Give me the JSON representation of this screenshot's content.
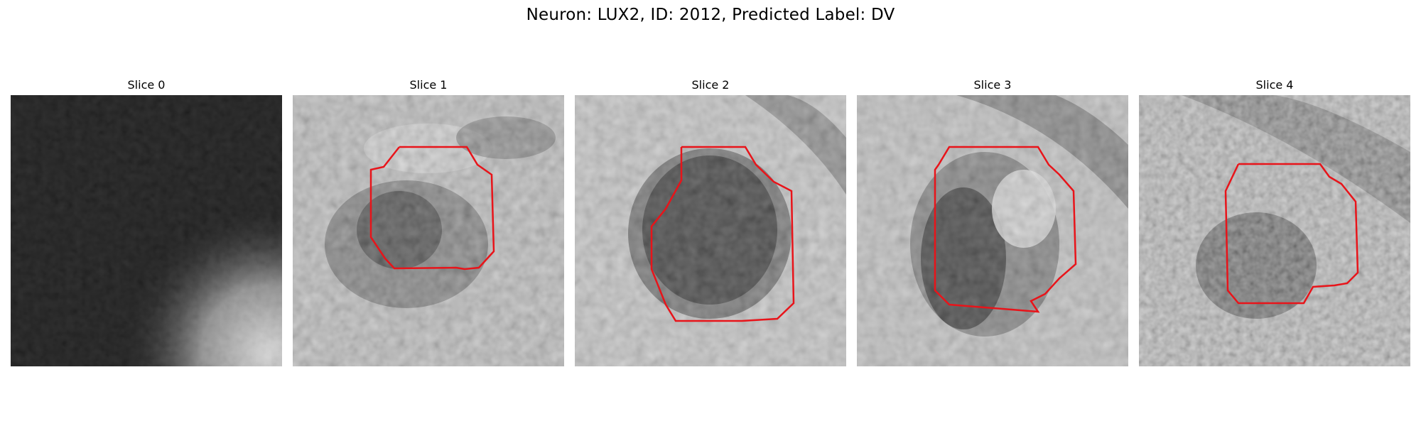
{
  "figure": {
    "title": "Neuron: LUX2, ID: 2012, Predicted Label: DV",
    "contour_color": "#e8141a",
    "colormap": "grayscale",
    "panels": [
      {
        "title": "Slice 0",
        "image_description": "dark grayscale microscopy patch with brighter region in lower-right",
        "has_contour": false
      },
      {
        "title": "Slice 1",
        "image_description": "grayscale microscopy patch with dark cell body",
        "has_contour": true
      },
      {
        "title": "Slice 2",
        "image_description": "grayscale microscopy patch with large dark cell body",
        "has_contour": true
      },
      {
        "title": "Slice 3",
        "image_description": "grayscale microscopy patch with dark cell body and bright nucleus region",
        "has_contour": true
      },
      {
        "title": "Slice 4",
        "image_description": "noisy grayscale microscopy patch with dark cell body",
        "has_contour": true
      }
    ]
  }
}
